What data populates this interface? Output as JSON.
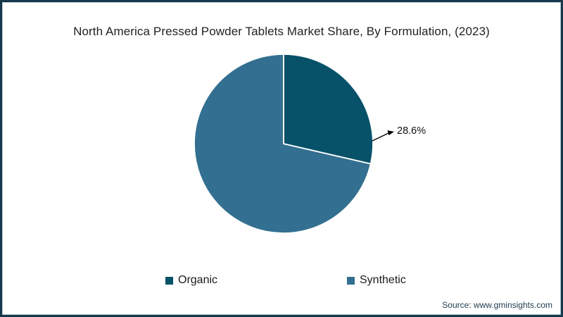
{
  "title": "North America Pressed Powder Tablets Market Share, By Formulation, (2023)",
  "source": "Source: www.gminsights.com",
  "colors": {
    "frame_border": "#16384d",
    "frame_inner_line": "#b9c8d2",
    "slice_divider": "#ffffff",
    "title_text": "#222222",
    "label_text": "#111111",
    "source_text": "#1e3c4e"
  },
  "chart_data": {
    "type": "pie",
    "title": "North America Pressed Powder Tablets Market Share, By Formulation, (2023)",
    "start_angle_deg": 0,
    "direction": "clockwise",
    "slices": [
      {
        "label": "Organic",
        "value": 28.6,
        "color": "#075169",
        "data_label": "28.6%"
      },
      {
        "label": "Synthetic",
        "value": 71.4,
        "color": "#336f90",
        "data_label": ""
      }
    ],
    "data_label": "28.6%",
    "labeled_slice": "Organic",
    "legend_position": "bottom"
  }
}
